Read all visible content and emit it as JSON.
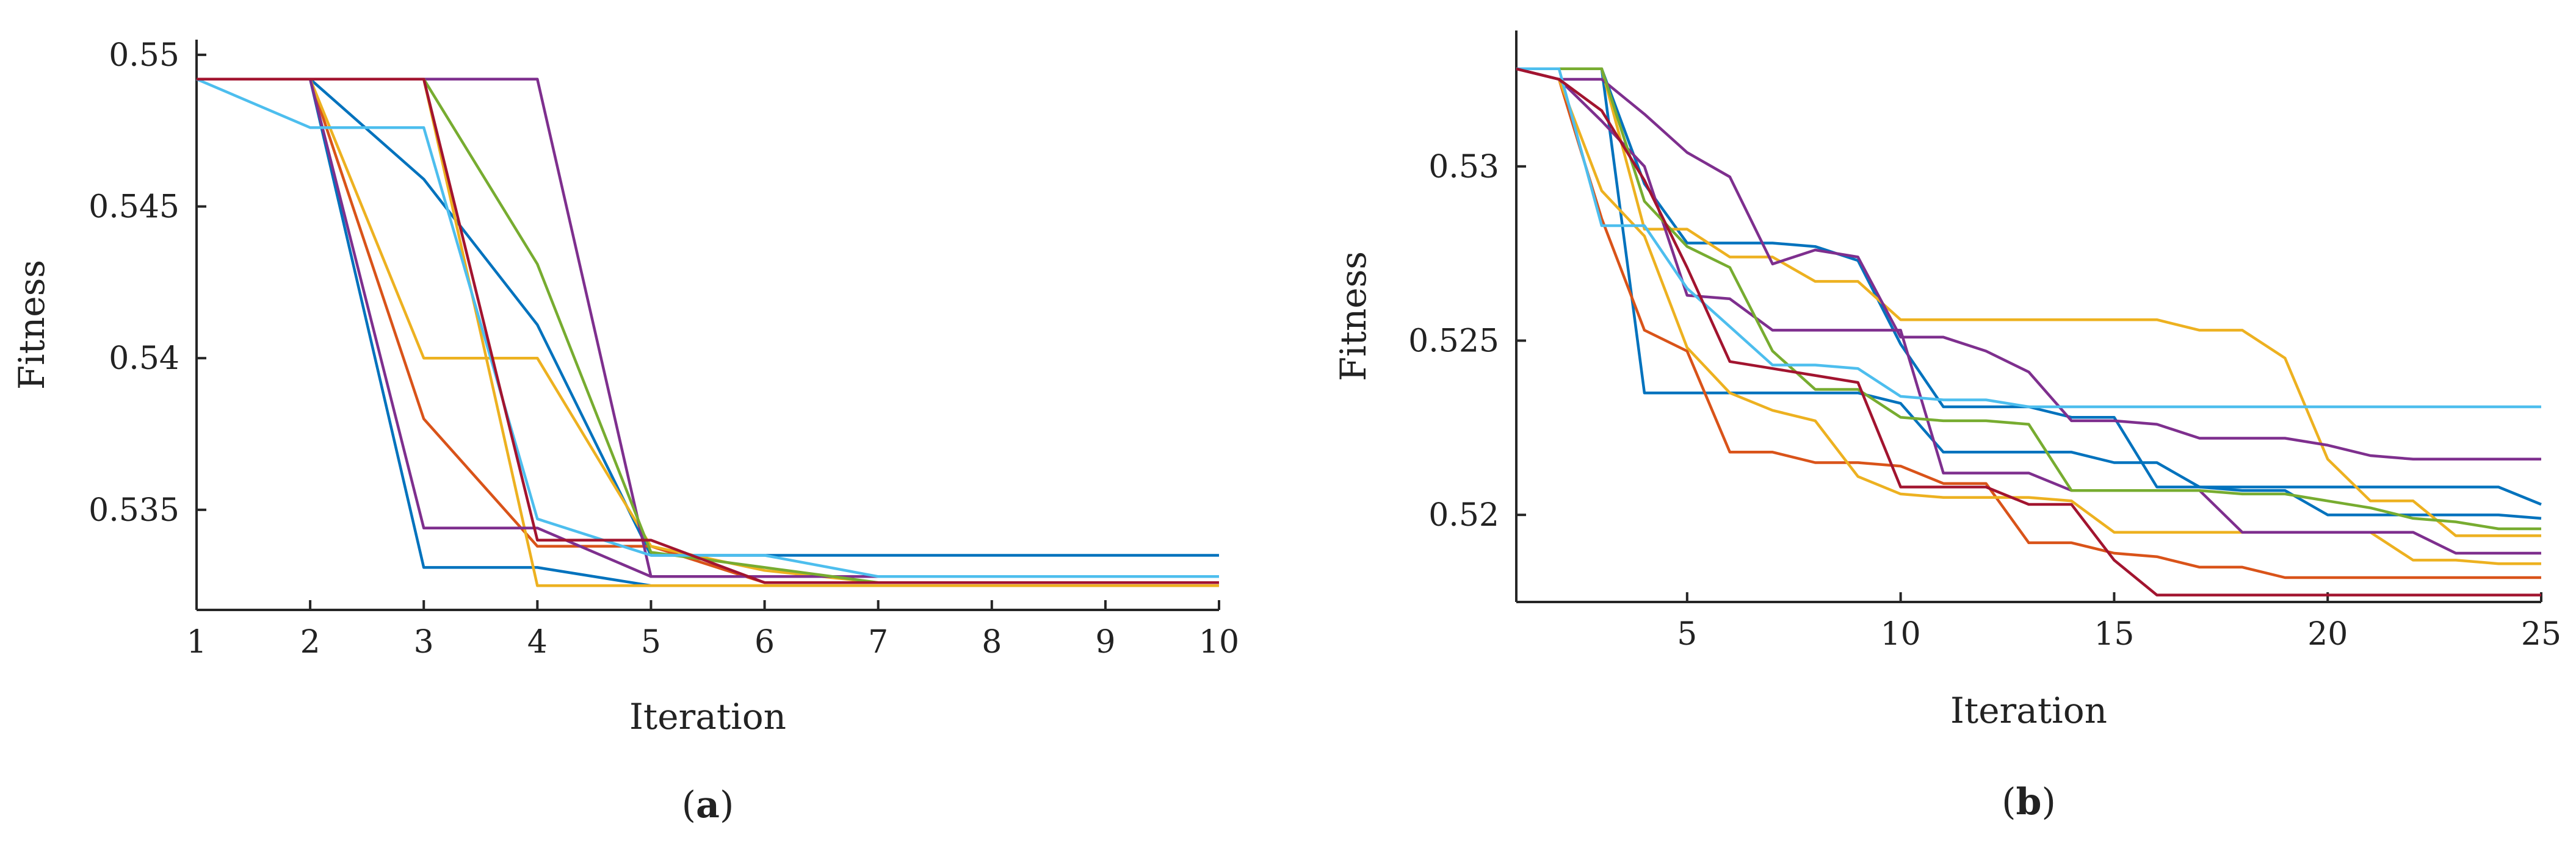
{
  "colors": {
    "blue": "#0072BD",
    "orange": "#D95319",
    "yellow": "#EDB120",
    "purple": "#7E2F8E",
    "green": "#77AC30",
    "cyan": "#4DBEEE",
    "red": "#A2142F",
    "axis": "#262626"
  },
  "chart_data": [
    {
      "type": "line",
      "panel_label": "(a)",
      "xlabel": "Iteration",
      "ylabel": "Fitness",
      "xlim": [
        1,
        10
      ],
      "ylim": [
        0.5317,
        0.5505
      ],
      "xticks": [
        1,
        2,
        3,
        4,
        5,
        6,
        7,
        8,
        9,
        10
      ],
      "yticks": [
        0.535,
        0.54,
        0.545,
        0.55
      ],
      "ytick_labels": [
        "0.535",
        "0.54",
        "0.545",
        "0.55"
      ],
      "grid": false,
      "series": [
        {
          "color": "blue",
          "x": [
            1,
            2,
            3,
            4,
            5,
            6,
            7,
            8,
            9,
            10
          ],
          "y": [
            0.5492,
            0.5492,
            0.5459,
            0.5411,
            0.5335,
            0.5335,
            0.5335,
            0.5335,
            0.5335,
            0.5335
          ]
        },
        {
          "color": "blue",
          "x": [
            1,
            2,
            3,
            4,
            5,
            6,
            7,
            8,
            9,
            10
          ],
          "y": [
            0.5492,
            0.5492,
            0.5331,
            0.5331,
            0.5325,
            0.5325,
            0.5325,
            0.5325,
            0.5325,
            0.5325
          ]
        },
        {
          "color": "orange",
          "x": [
            1,
            2,
            3,
            4,
            5,
            6,
            7,
            8,
            9,
            10
          ],
          "y": [
            0.5492,
            0.5492,
            0.538,
            0.5338,
            0.5338,
            0.5326,
            0.5326,
            0.5326,
            0.5326,
            0.5326
          ]
        },
        {
          "color": "yellow",
          "x": [
            1,
            2,
            3,
            4,
            5,
            6,
            7,
            8,
            9,
            10
          ],
          "y": [
            0.5492,
            0.5492,
            0.54,
            0.54,
            0.5338,
            0.533,
            0.5326,
            0.5326,
            0.5326,
            0.5326
          ]
        },
        {
          "color": "yellow",
          "x": [
            1,
            2,
            3,
            4,
            5,
            6,
            7,
            8,
            9,
            10
          ],
          "y": [
            0.5492,
            0.5492,
            0.5492,
            0.5325,
            0.5325,
            0.5325,
            0.5325,
            0.5325,
            0.5325,
            0.5325
          ]
        },
        {
          "color": "purple",
          "x": [
            1,
            2,
            3,
            4,
            5,
            6,
            7,
            8,
            9,
            10
          ],
          "y": [
            0.5492,
            0.5492,
            0.5344,
            0.5344,
            0.5328,
            0.5328,
            0.5328,
            0.5328,
            0.5328,
            0.5328
          ]
        },
        {
          "color": "purple",
          "x": [
            1,
            2,
            3,
            4,
            5,
            6,
            7,
            8,
            9,
            10
          ],
          "y": [
            0.5492,
            0.5492,
            0.5492,
            0.5492,
            0.5328,
            0.5328,
            0.5328,
            0.5328,
            0.5328,
            0.5328
          ]
        },
        {
          "color": "green",
          "x": [
            1,
            2,
            3,
            4,
            5,
            6,
            7,
            8,
            9,
            10
          ],
          "y": [
            0.5492,
            0.5492,
            0.5492,
            0.5431,
            0.5336,
            0.5331,
            0.5326,
            0.5326,
            0.5326,
            0.5326
          ]
        },
        {
          "color": "cyan",
          "x": [
            1,
            2,
            3,
            4,
            5,
            6,
            7,
            8,
            9,
            10
          ],
          "y": [
            0.5492,
            0.5476,
            0.5476,
            0.5347,
            0.5335,
            0.5335,
            0.5328,
            0.5328,
            0.5328,
            0.5328
          ]
        },
        {
          "color": "red",
          "x": [
            1,
            2,
            3,
            4,
            5,
            6,
            7,
            8,
            9,
            10
          ],
          "y": [
            0.5492,
            0.5492,
            0.5492,
            0.534,
            0.534,
            0.5326,
            0.5326,
            0.5326,
            0.5326,
            0.5326
          ]
        }
      ]
    },
    {
      "type": "line",
      "panel_label": "(b)",
      "xlabel": "Iteration",
      "ylabel": "Fitness",
      "xlim": [
        1,
        25
      ],
      "ylim": [
        0.5175,
        0.5339
      ],
      "xticks": [
        5,
        10,
        15,
        20,
        25
      ],
      "yticks": [
        0.52,
        0.525,
        0.53
      ],
      "ytick_labels": [
        "0.52",
        "0.525",
        "0.53"
      ],
      "grid": false,
      "series": [
        {
          "color": "blue",
          "x": [
            1,
            2,
            3,
            4,
            5,
            6,
            7,
            8,
            9,
            10,
            11,
            12,
            13,
            14,
            15,
            16,
            17,
            18,
            19,
            20,
            21,
            22,
            23,
            24,
            25
          ],
          "y": [
            0.5328,
            0.5328,
            0.5328,
            0.5235,
            0.5235,
            0.5235,
            0.5235,
            0.5235,
            0.5235,
            0.5232,
            0.5218,
            0.5218,
            0.5218,
            0.5218,
            0.5215,
            0.5215,
            0.5208,
            0.5208,
            0.5208,
            0.5208,
            0.5208,
            0.5208,
            0.5208,
            0.5208,
            0.5203
          ]
        },
        {
          "color": "blue",
          "x": [
            1,
            2,
            3,
            4,
            5,
            6,
            7,
            8,
            9,
            10,
            11,
            12,
            13,
            14,
            15,
            16,
            17,
            18,
            19,
            20,
            21,
            22,
            23,
            24,
            25
          ],
          "y": [
            0.5328,
            0.5328,
            0.5328,
            0.5295,
            0.5278,
            0.5278,
            0.5278,
            0.5277,
            0.5273,
            0.5249,
            0.5231,
            0.5231,
            0.5231,
            0.5228,
            0.5228,
            0.5208,
            0.5208,
            0.5207,
            0.5207,
            0.52,
            0.52,
            0.52,
            0.52,
            0.52,
            0.5199
          ]
        },
        {
          "color": "orange",
          "x": [
            1,
            2,
            3,
            4,
            5,
            6,
            7,
            8,
            9,
            10,
            11,
            12,
            13,
            14,
            15,
            16,
            17,
            18,
            19,
            20,
            21,
            22,
            23,
            24,
            25
          ],
          "y": [
            0.5328,
            0.5325,
            0.5285,
            0.5253,
            0.5247,
            0.5218,
            0.5218,
            0.5215,
            0.5215,
            0.5214,
            0.5209,
            0.5209,
            0.5192,
            0.5192,
            0.5189,
            0.5188,
            0.5185,
            0.5185,
            0.5182,
            0.5182,
            0.5182,
            0.5182,
            0.5182,
            0.5182,
            0.5182
          ]
        },
        {
          "color": "yellow",
          "x": [
            1,
            2,
            3,
            4,
            5,
            6,
            7,
            8,
            9,
            10,
            11,
            12,
            13,
            14,
            15,
            16,
            17,
            18,
            19,
            20,
            21,
            22,
            23,
            24,
            25
          ],
          "y": [
            0.5328,
            0.5328,
            0.5328,
            0.5282,
            0.5282,
            0.5274,
            0.5274,
            0.5267,
            0.5267,
            0.5256,
            0.5256,
            0.5256,
            0.5256,
            0.5256,
            0.5256,
            0.5256,
            0.5253,
            0.5253,
            0.5245,
            0.5216,
            0.5204,
            0.5204,
            0.5194,
            0.5194,
            0.5194
          ]
        },
        {
          "color": "yellow",
          "x": [
            1,
            2,
            3,
            4,
            5,
            6,
            7,
            8,
            9,
            10,
            11,
            12,
            13,
            14,
            15,
            16,
            17,
            18,
            19,
            20,
            21,
            22,
            23,
            24,
            25
          ],
          "y": [
            0.5328,
            0.5325,
            0.5293,
            0.528,
            0.5248,
            0.5235,
            0.523,
            0.5227,
            0.5211,
            0.5206,
            0.5205,
            0.5205,
            0.5205,
            0.5204,
            0.5195,
            0.5195,
            0.5195,
            0.5195,
            0.5195,
            0.5195,
            0.5195,
            0.5187,
            0.5187,
            0.5186,
            0.5186
          ]
        },
        {
          "color": "purple",
          "x": [
            1,
            2,
            3,
            4,
            5,
            6,
            7,
            8,
            9,
            10,
            11,
            12,
            13,
            14,
            15,
            16,
            17,
            18,
            19,
            20,
            21,
            22,
            23,
            24,
            25
          ],
          "y": [
            0.5328,
            0.5325,
            0.5325,
            0.5315,
            0.5304,
            0.5297,
            0.5272,
            0.5276,
            0.5274,
            0.5251,
            0.5251,
            0.5247,
            0.5241,
            0.5227,
            0.5227,
            0.5226,
            0.5222,
            0.5222,
            0.5222,
            0.522,
            0.5217,
            0.5216,
            0.5216,
            0.5216,
            0.5216
          ]
        },
        {
          "color": "purple",
          "x": [
            1,
            2,
            3,
            4,
            5,
            6,
            7,
            8,
            9,
            10,
            11,
            12,
            13,
            14,
            15,
            16,
            17,
            18,
            19,
            20,
            21,
            22,
            23,
            24,
            25
          ],
          "y": [
            0.5328,
            0.5325,
            0.5313,
            0.53,
            0.5263,
            0.5262,
            0.5253,
            0.5253,
            0.5253,
            0.5253,
            0.5212,
            0.5212,
            0.5212,
            0.5207,
            0.5207,
            0.5207,
            0.5207,
            0.5195,
            0.5195,
            0.5195,
            0.5195,
            0.5195,
            0.5189,
            0.5189,
            0.5189
          ]
        },
        {
          "color": "green",
          "x": [
            1,
            2,
            3,
            4,
            5,
            6,
            7,
            8,
            9,
            10,
            11,
            12,
            13,
            14,
            15,
            16,
            17,
            18,
            19,
            20,
            21,
            22,
            23,
            24,
            25
          ],
          "y": [
            0.5328,
            0.5328,
            0.5328,
            0.529,
            0.5277,
            0.5271,
            0.5247,
            0.5236,
            0.5236,
            0.5228,
            0.5227,
            0.5227,
            0.5226,
            0.5207,
            0.5207,
            0.5207,
            0.5207,
            0.5206,
            0.5206,
            0.5204,
            0.5202,
            0.5199,
            0.5198,
            0.5196,
            0.5196
          ]
        },
        {
          "color": "cyan",
          "x": [
            1,
            2,
            3,
            4,
            5,
            6,
            7,
            8,
            9,
            10,
            11,
            12,
            13,
            14,
            15,
            16,
            17,
            18,
            19,
            20,
            21,
            22,
            23,
            24,
            25
          ],
          "y": [
            0.5328,
            0.5328,
            0.5283,
            0.5283,
            0.5265,
            0.5254,
            0.5243,
            0.5243,
            0.5242,
            0.5234,
            0.5233,
            0.5233,
            0.5231,
            0.5231,
            0.5231,
            0.5231,
            0.5231,
            0.5231,
            0.5231,
            0.5231,
            0.5231,
            0.5231,
            0.5231,
            0.5231,
            0.5231
          ]
        },
        {
          "color": "red",
          "x": [
            1,
            2,
            3,
            4,
            5,
            6,
            7,
            8,
            9,
            10,
            11,
            12,
            13,
            14,
            15,
            16,
            17,
            18,
            19,
            20,
            21,
            22,
            23,
            24,
            25
          ],
          "y": [
            0.5328,
            0.5325,
            0.5316,
            0.5296,
            0.5271,
            0.5244,
            0.5242,
            0.524,
            0.5238,
            0.5208,
            0.5208,
            0.5208,
            0.5203,
            0.5203,
            0.5187,
            0.5177,
            0.5177,
            0.5177,
            0.5177,
            0.5177,
            0.5177,
            0.5177,
            0.5177,
            0.5177,
            0.5177
          ]
        }
      ]
    }
  ]
}
